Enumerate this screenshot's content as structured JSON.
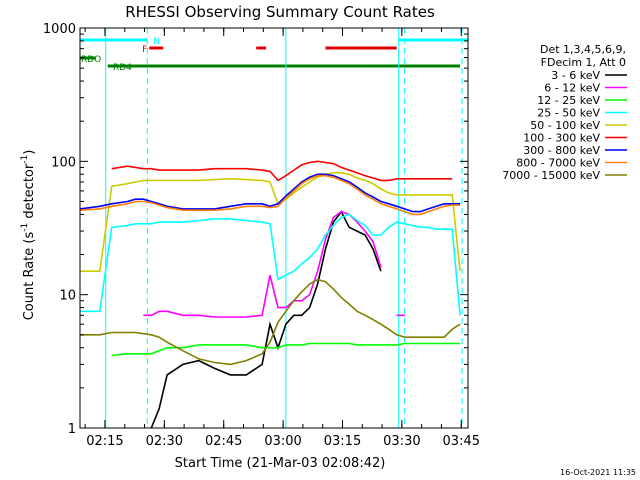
{
  "chart_data": {
    "type": "line",
    "title": "RHESSI Observing Summary Count Rates",
    "xlabel": "Start Time (21-Mar-03 02:08:42)",
    "ylabel_main": "Count Rate (s",
    "ylabel_sup1": "-1",
    "ylabel_mid": " detector",
    "ylabel_sup2": "-1",
    "ylabel_end": ")",
    "y_scale": "log",
    "ylim": [
      1,
      1000
    ],
    "xlim_minutes": [
      0,
      98
    ],
    "x_ticks": [
      {
        "minute": 6.3,
        "label": "02:15"
      },
      {
        "minute": 21.3,
        "label": "02:30"
      },
      {
        "minute": 36.3,
        "label": "02:45"
      },
      {
        "minute": 51.3,
        "label": "03:00"
      },
      {
        "minute": 66.3,
        "label": "03:15"
      },
      {
        "minute": 81.3,
        "label": "03:30"
      },
      {
        "minute": 96.3,
        "label": "03:45"
      }
    ],
    "y_ticks": [
      {
        "value": 1,
        "label": "1"
      },
      {
        "value": 10,
        "label": "10"
      },
      {
        "value": 100,
        "label": "100"
      },
      {
        "value": 1000,
        "label": "1000"
      }
    ],
    "legend_header": [
      "Det 1,3,4,5,6,9,",
      "FDecim 1, Att 0"
    ],
    "series": [
      {
        "name": "3 - 6 keV",
        "color": "#000000",
        "x": [
          0,
          5,
          8,
          12,
          14,
          16,
          18,
          20,
          22,
          26,
          30,
          34,
          38,
          42,
          46,
          48,
          50,
          52,
          54,
          56,
          58,
          60,
          62,
          64,
          66,
          68,
          70,
          72,
          74,
          76,
          78,
          80,
          82,
          84,
          86,
          88,
          90,
          92,
          94,
          96,
          98
        ],
        "y": [
          null,
          null,
          null,
          null,
          null,
          null,
          1.0,
          1.4,
          2.5,
          3.0,
          3.2,
          2.8,
          2.5,
          2.5,
          3.0,
          6,
          4,
          6,
          7,
          7,
          8,
          12,
          22,
          35,
          42,
          32,
          30,
          28,
          22,
          15,
          null,
          null,
          null,
          null,
          null,
          null,
          null,
          null,
          null,
          null,
          null
        ]
      },
      {
        "name": "6 - 12 keV",
        "color": "#ff00ff",
        "x": [
          0,
          5,
          8,
          12,
          14,
          16,
          18,
          20,
          22,
          26,
          30,
          34,
          38,
          42,
          46,
          48,
          50,
          52,
          54,
          56,
          58,
          60,
          62,
          64,
          66,
          68,
          70,
          72,
          74,
          76,
          78,
          80,
          82,
          84,
          86,
          88,
          90,
          92,
          94,
          96,
          98
        ],
        "y": [
          null,
          null,
          null,
          null,
          null,
          7,
          7,
          7.5,
          7.5,
          7,
          7,
          6.8,
          6.8,
          6.8,
          7,
          14,
          8,
          8,
          9,
          9,
          10,
          15,
          26,
          38,
          42,
          40,
          35,
          30,
          25,
          16,
          null,
          7,
          7,
          null,
          null,
          null,
          null,
          null,
          null,
          null,
          null
        ]
      },
      {
        "name": "12 - 25 keV",
        "color": "#00ff00",
        "x": [
          0,
          5,
          8,
          12,
          14,
          16,
          18,
          20,
          22,
          26,
          30,
          34,
          38,
          42,
          46,
          48,
          50,
          52,
          54,
          56,
          58,
          60,
          62,
          64,
          66,
          68,
          70,
          72,
          74,
          76,
          78,
          80,
          82,
          84,
          86,
          88,
          90,
          92,
          94,
          96,
          98
        ],
        "y": [
          null,
          null,
          3.5,
          3.6,
          3.6,
          3.6,
          3.6,
          3.8,
          4,
          4,
          4.2,
          4.2,
          4.2,
          4.2,
          4,
          4,
          4,
          4.2,
          4.2,
          4.2,
          4.3,
          4.3,
          4.3,
          4.3,
          4.3,
          4.3,
          4.2,
          4.2,
          4.2,
          4.2,
          4.2,
          4.2,
          4.3,
          4.3,
          4.3,
          4.3,
          4.3,
          4.3,
          4.3,
          4.3,
          null
        ]
      },
      {
        "name": "25 - 50 keV",
        "color": "#00ffff",
        "x": [
          0,
          5,
          8,
          12,
          14,
          16,
          18,
          20,
          22,
          26,
          30,
          34,
          38,
          42,
          46,
          48,
          50,
          52,
          54,
          56,
          58,
          60,
          62,
          64,
          66,
          68,
          70,
          72,
          74,
          76,
          78,
          80,
          82,
          84,
          86,
          88,
          90,
          92,
          94,
          96,
          98
        ],
        "y": [
          7.5,
          7.5,
          32,
          33,
          34,
          34,
          34,
          35,
          35,
          35,
          36,
          37,
          37,
          36,
          35,
          34,
          13,
          14,
          15,
          17,
          19,
          22,
          28,
          33,
          38,
          40,
          36,
          33,
          28,
          28,
          32,
          35,
          34,
          33,
          32,
          32,
          31,
          31,
          31,
          7,
          null
        ]
      },
      {
        "name": "50 - 100 keV",
        "color": "#cccc00",
        "x": [
          0,
          5,
          8,
          12,
          14,
          16,
          18,
          20,
          22,
          26,
          30,
          34,
          38,
          42,
          46,
          48,
          50,
          52,
          54,
          56,
          58,
          60,
          62,
          64,
          66,
          68,
          70,
          72,
          74,
          76,
          78,
          80,
          82,
          84,
          86,
          88,
          90,
          92,
          94,
          96,
          98
        ],
        "y": [
          15,
          15,
          65,
          68,
          70,
          72,
          72,
          72,
          72,
          72,
          72,
          73,
          74,
          73,
          72,
          70,
          48,
          52,
          58,
          64,
          70,
          76,
          80,
          82,
          82,
          80,
          75,
          72,
          68,
          62,
          58,
          56,
          56,
          56,
          56,
          56,
          56,
          56,
          56,
          15,
          null
        ]
      },
      {
        "name": "100 - 300 keV",
        "color": "#ff0000",
        "x": [
          0,
          5,
          8,
          12,
          14,
          16,
          18,
          20,
          22,
          26,
          30,
          34,
          38,
          42,
          46,
          48,
          50,
          52,
          54,
          56,
          58,
          60,
          62,
          64,
          66,
          68,
          70,
          72,
          74,
          76,
          78,
          80,
          82,
          84,
          86,
          88,
          90,
          92,
          94,
          96,
          98
        ],
        "y": [
          null,
          null,
          88,
          92,
          90,
          88,
          88,
          86,
          86,
          86,
          86,
          88,
          88,
          88,
          86,
          84,
          72,
          78,
          86,
          94,
          98,
          100,
          98,
          96,
          90,
          86,
          82,
          78,
          75,
          72,
          72,
          74,
          74,
          74,
          74,
          74,
          74,
          74,
          74,
          null,
          null
        ]
      },
      {
        "name": "300 - 800 keV",
        "color": "#0000ff",
        "x": [
          0,
          5,
          8,
          12,
          14,
          16,
          18,
          20,
          22,
          26,
          30,
          34,
          38,
          42,
          46,
          48,
          50,
          52,
          54,
          56,
          58,
          60,
          62,
          64,
          66,
          68,
          70,
          72,
          74,
          76,
          78,
          80,
          82,
          84,
          86,
          88,
          90,
          92,
          94,
          96,
          98
        ],
        "y": [
          44,
          46,
          48,
          50,
          52,
          52,
          50,
          48,
          46,
          44,
          44,
          44,
          46,
          48,
          48,
          46,
          48,
          55,
          62,
          70,
          76,
          80,
          80,
          78,
          74,
          70,
          64,
          58,
          54,
          50,
          48,
          46,
          44,
          42,
          42,
          44,
          46,
          48,
          48,
          48,
          null
        ]
      },
      {
        "name": "800 - 7000 keV",
        "color": "#ff8000",
        "x": [
          0,
          5,
          8,
          12,
          14,
          16,
          18,
          20,
          22,
          26,
          30,
          34,
          38,
          42,
          46,
          48,
          50,
          52,
          54,
          56,
          58,
          60,
          62,
          64,
          66,
          68,
          70,
          72,
          74,
          76,
          78,
          80,
          82,
          84,
          86,
          88,
          90,
          92,
          94,
          96,
          98
        ],
        "y": [
          43,
          44,
          46,
          48,
          50,
          50,
          49,
          47,
          45,
          43,
          43,
          43,
          44,
          46,
          46,
          45,
          46,
          53,
          60,
          68,
          74,
          78,
          78,
          76,
          72,
          68,
          62,
          56,
          52,
          48,
          46,
          44,
          42,
          40,
          40,
          42,
          44,
          46,
          47,
          47,
          null
        ]
      },
      {
        "name": "7000 - 15000 keV",
        "color": "#808000",
        "x": [
          0,
          5,
          8,
          12,
          14,
          16,
          18,
          20,
          22,
          26,
          30,
          34,
          38,
          42,
          46,
          48,
          50,
          52,
          54,
          56,
          58,
          60,
          62,
          64,
          66,
          68,
          70,
          72,
          74,
          76,
          78,
          80,
          82,
          84,
          86,
          88,
          90,
          92,
          94,
          96,
          98
        ],
        "y": [
          5,
          5,
          5.2,
          5.2,
          5.2,
          5.1,
          5.0,
          4.8,
          4.4,
          3.8,
          3.3,
          3.1,
          3.0,
          3.2,
          3.6,
          4.4,
          6.2,
          7.5,
          9,
          10.5,
          12,
          13,
          12.5,
          11,
          9.5,
          8.5,
          7.5,
          7,
          6.5,
          6,
          5.5,
          5,
          4.8,
          4.8,
          4.8,
          4.8,
          4.8,
          4.8,
          5.5,
          6,
          null
        ]
      }
    ],
    "status_bars": [
      {
        "label": "N",
        "color": "#00ffff",
        "segments": [
          [
            0,
            17
          ],
          [
            80.5,
            98
          ]
        ],
        "level": "top"
      },
      {
        "label": "F",
        "color": "#e00000",
        "segments": [
          [
            17.5,
            21
          ],
          [
            44.5,
            47
          ],
          [
            62,
            80
          ]
        ],
        "level": "second"
      },
      {
        "label": "RDO",
        "color": "#008000",
        "segments": [
          [
            0,
            4
          ]
        ],
        "level": "third"
      },
      {
        "label": "RD4",
        "color": "#008000",
        "segments": [
          [
            7,
            52
          ],
          [
            52,
            72
          ],
          [
            72,
            96
          ]
        ],
        "level": "fourth"
      }
    ],
    "vertical_markers": [
      {
        "minute": 6.5,
        "style": "solid",
        "color": "#00ffff"
      },
      {
        "minute": 17,
        "style": "dashed",
        "color": "#00ffff"
      },
      {
        "minute": 52,
        "style": "solid",
        "color": "#00ffff"
      },
      {
        "minute": 80.5,
        "style": "solid",
        "color": "#00ffff"
      },
      {
        "minute": 82,
        "style": "dashed",
        "color": "#00ffff"
      },
      {
        "minute": 96.5,
        "style": "dashed",
        "color": "#00ffff"
      }
    ],
    "grid": false,
    "legend_position": "right"
  },
  "footer_date": "16-Oct-2021 11:35"
}
